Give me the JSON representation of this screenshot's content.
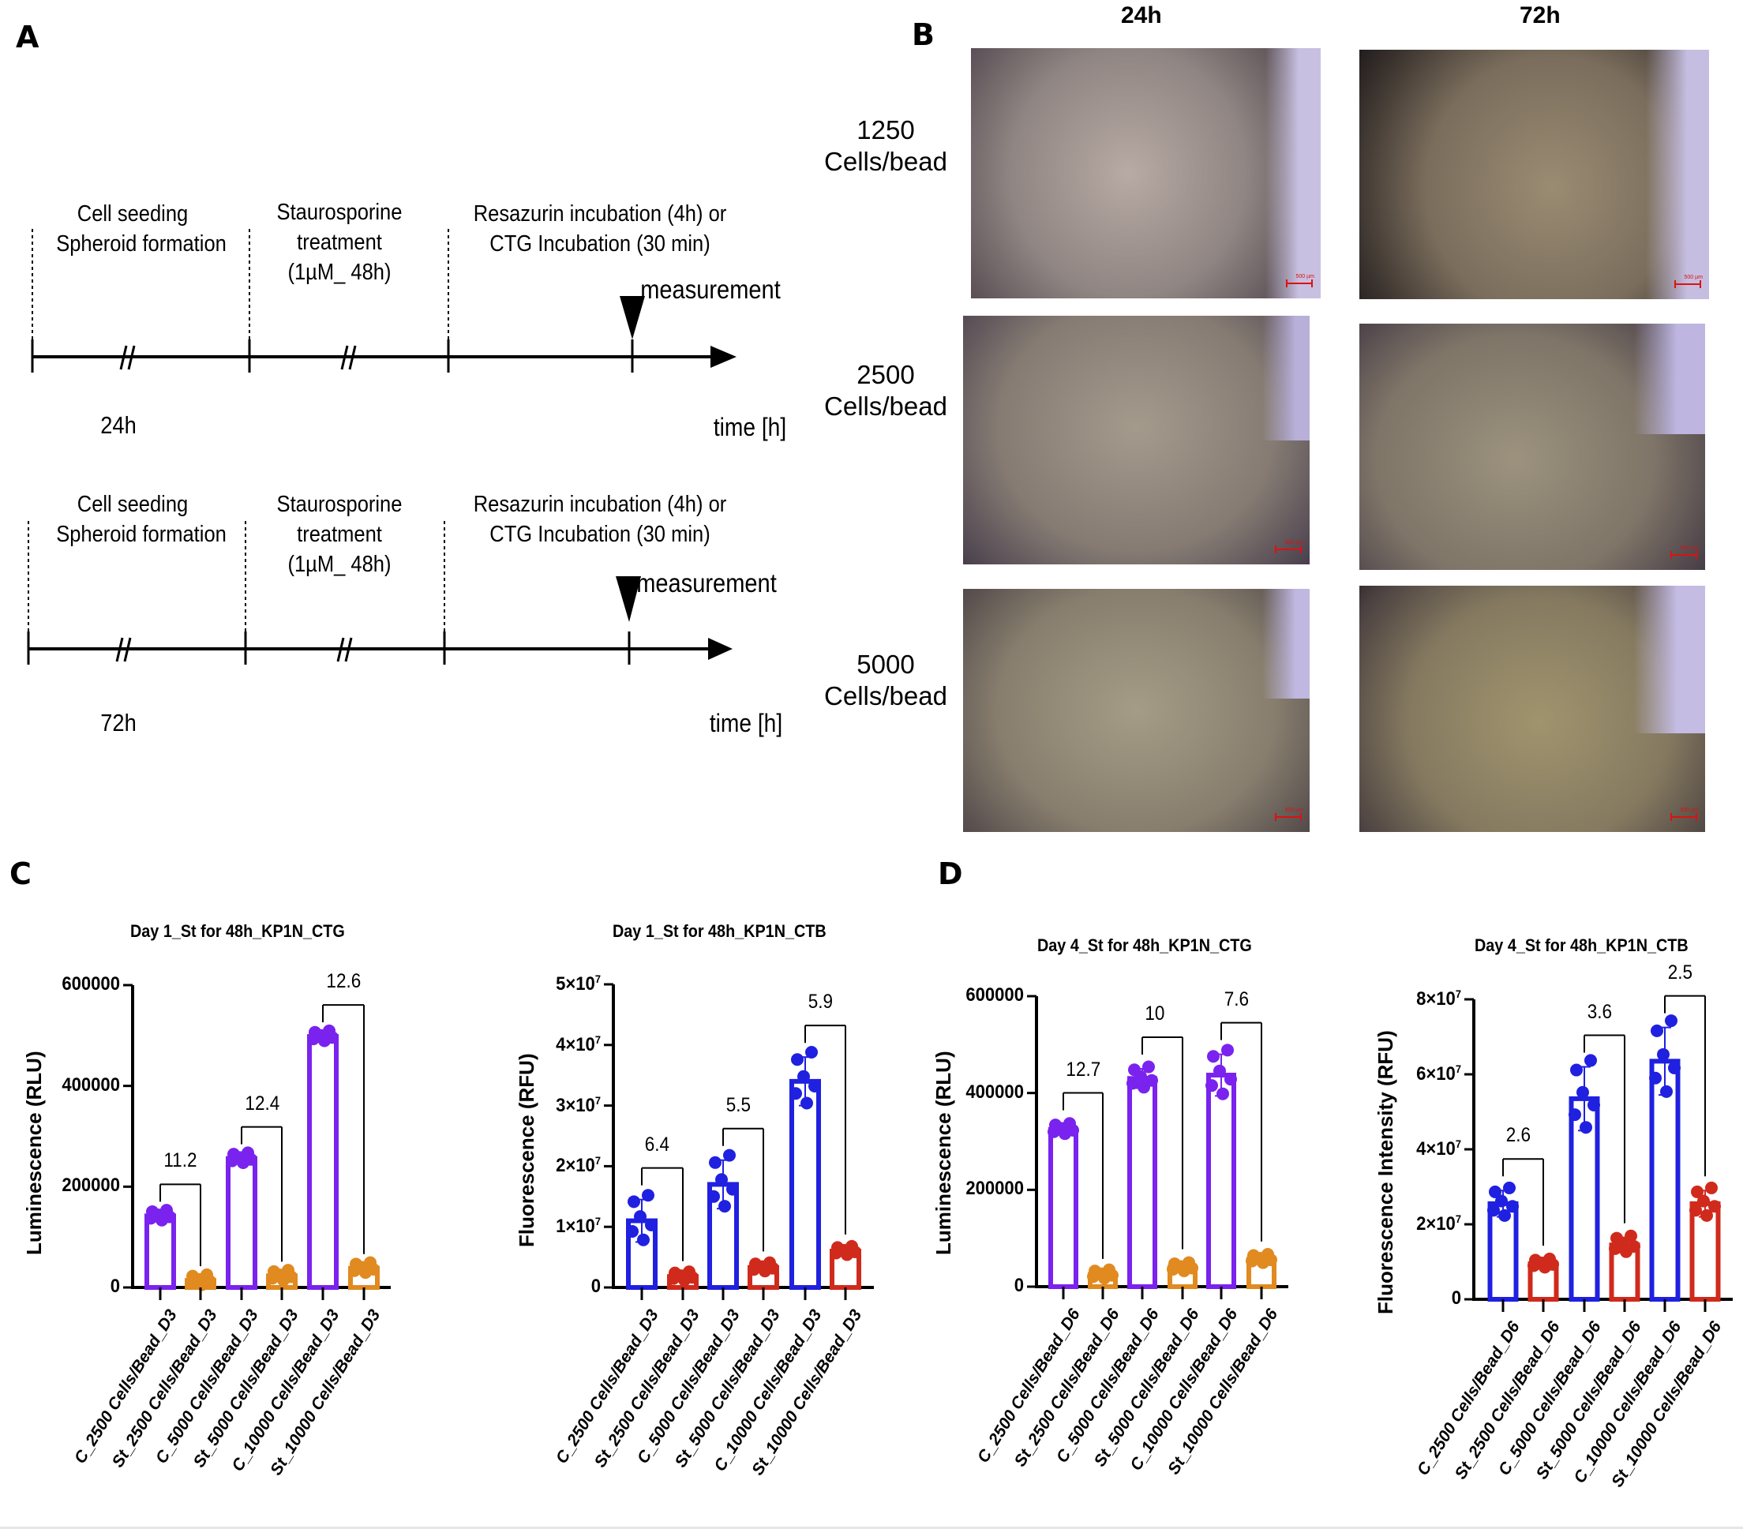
{
  "panels": {
    "A": {
      "letter": "A",
      "timelines": [
        {
          "stage1": [
            "Cell seeding",
            "Spheroid formation"
          ],
          "stage2": [
            "Staurosporine",
            "treatment",
            "(1µM_ 48h)"
          ],
          "stage3": [
            "Resazurin incubation (4h) or",
            "CTG Incubation (30 min)"
          ],
          "marker": "measurement",
          "duration": "24h",
          "axis_label": "time [h]"
        },
        {
          "stage1": [
            "Cell seeding",
            "Spheroid formation"
          ],
          "stage2": [
            "Staurosporine",
            "treatment",
            "(1µM_ 48h)"
          ],
          "stage3": [
            "Resazurin incubation (4h) or",
            "CTG Incubation (30 min)"
          ],
          "marker": "measurement",
          "duration": "72h",
          "axis_label": "time [h]"
        }
      ]
    },
    "B": {
      "letter": "B",
      "columns": [
        "24h",
        "72h"
      ],
      "rows": [
        {
          "count": "1250",
          "unit": "Cells/bead"
        },
        {
          "count": "2500",
          "unit": "Cells/bead"
        },
        {
          "count": "5000",
          "unit": "Cells/bead"
        }
      ],
      "scale_bar": "500 µm"
    },
    "C": {
      "letter": "C"
    },
    "D": {
      "letter": "D"
    }
  },
  "colors": {
    "purple": "#7a22ee",
    "orange": "#e08a20",
    "blue": "#2020e0",
    "red": "#d02a1c"
  },
  "chart_data": [
    {
      "type": "bar",
      "panel": "C",
      "title": "Day 1_St for 48h_KP1N_CTG",
      "ylabel": "Luminescence (RLU)",
      "xlabel": "",
      "ylim": [
        0,
        600000
      ],
      "yticks": [
        "0",
        "200000",
        "400000",
        "600000"
      ],
      "categories": [
        "C_2500 Cells/Bead_D3",
        "St_2500 Cells/Bead_D3",
        "C_5000 Cells/Bead_D3",
        "St_5000 Cells/Bead_D3",
        "C_10000 Cells/Bead_D3",
        "St_10000 Cells/Bead_D3"
      ],
      "values": [
        142000,
        14000,
        256000,
        23000,
        498000,
        38000
      ],
      "bar_colors": [
        "#7a22ee",
        "#e08a20",
        "#7a22ee",
        "#e08a20",
        "#7a22ee",
        "#e08a20"
      ],
      "fold_changes": [
        {
          "pair": [
            0,
            1
          ],
          "label": "11.2"
        },
        {
          "pair": [
            2,
            3
          ],
          "label": "12.4"
        },
        {
          "pair": [
            4,
            5
          ],
          "label": "12.6"
        }
      ]
    },
    {
      "type": "bar",
      "panel": "C",
      "title": "Day 1_St for 48h_KP1N_CTB",
      "ylabel": "Fluorescence (RFU)",
      "xlabel": "",
      "ylim": [
        0,
        50000000
      ],
      "yticks": [
        "0",
        "1×10^7",
        "2×10^7",
        "3×10^7",
        "4×10^7",
        "5×10^7"
      ],
      "categories": [
        "C_2500 Cells/Bead_D3",
        "St_2500 Cells/Bead_D3",
        "C_5000 Cells/Bead_D3",
        "St_5000 Cells/Bead_D3",
        "C_10000 Cells/Bead_D3",
        "St_10000 Cells/Bead_D3"
      ],
      "values": [
        11000000,
        1800000,
        17000000,
        3300000,
        34000000,
        6000000
      ],
      "error_upper": [
        14500000,
        2000000,
        21000000,
        3600000,
        38000000,
        6400000
      ],
      "bar_colors": [
        "#2020e0",
        "#d02a1c",
        "#2020e0",
        "#d02a1c",
        "#2020e0",
        "#d02a1c"
      ],
      "fold_changes": [
        {
          "pair": [
            0,
            1
          ],
          "label": "6.4"
        },
        {
          "pair": [
            2,
            3
          ],
          "label": "5.5"
        },
        {
          "pair": [
            4,
            5
          ],
          "label": "5.9"
        }
      ]
    },
    {
      "type": "bar",
      "panel": "D",
      "title": "Day 4_St for 48h_KP1N_CTG",
      "ylabel": "Luminescence (RLU)",
      "xlabel": "",
      "ylim": [
        0,
        600000
      ],
      "yticks": [
        "0",
        "200000",
        "400000",
        "600000"
      ],
      "categories": [
        "C_2500 Cells/Bead_D6",
        "St_2500 Cells/Bead_D6",
        "C_5000 Cells/Bead_D6",
        "St_5000 Cells/Bead_D6",
        "C_10000 Cells/Bead_D6",
        "St_10000 Cells/Bead_D6"
      ],
      "values": [
        325000,
        25000,
        430000,
        40000,
        437000,
        57000
      ],
      "error_upper": [
        335000,
        28000,
        450000,
        48000,
        480000,
        64000
      ],
      "bar_colors": [
        "#7a22ee",
        "#e08a20",
        "#7a22ee",
        "#e08a20",
        "#7a22ee",
        "#e08a20"
      ],
      "fold_changes": [
        {
          "pair": [
            0,
            1
          ],
          "label": "12.7"
        },
        {
          "pair": [
            2,
            3
          ],
          "label": "10"
        },
        {
          "pair": [
            4,
            5
          ],
          "label": "7.6"
        }
      ]
    },
    {
      "type": "bar",
      "panel": "D",
      "title": "Day 4_St for 48h_KP1N_CTB",
      "ylabel": "Fluorescence Intensity (RFU)",
      "xlabel": "",
      "ylim": [
        0,
        80000000
      ],
      "yticks": [
        "0",
        "2×10^7",
        "4×10^7",
        "6×10^7",
        "8×10^7"
      ],
      "categories": [
        "C_2500 Cells/Bead_D6",
        "St_2500 Cells/Bead_D6",
        "C_5000 Cells/Bead_D6",
        "St_5000 Cells/Bead_D6",
        "C_10000 Cells/Bead_D6",
        "St_10000 Cells/Bead_D6"
      ],
      "values": [
        25500000,
        9500000,
        53500000,
        14500000,
        63500000,
        25500000
      ],
      "error_upper": [
        29000000,
        10500000,
        62000000,
        16500000,
        72500000,
        29000000
      ],
      "bar_colors": [
        "#2020e0",
        "#d02a1c",
        "#2020e0",
        "#d02a1c",
        "#2020e0",
        "#d02a1c"
      ],
      "fold_changes": [
        {
          "pair": [
            0,
            1
          ],
          "label": "2.6"
        },
        {
          "pair": [
            2,
            3
          ],
          "label": "3.6"
        },
        {
          "pair": [
            4,
            5
          ],
          "label": "2.5"
        }
      ]
    }
  ]
}
